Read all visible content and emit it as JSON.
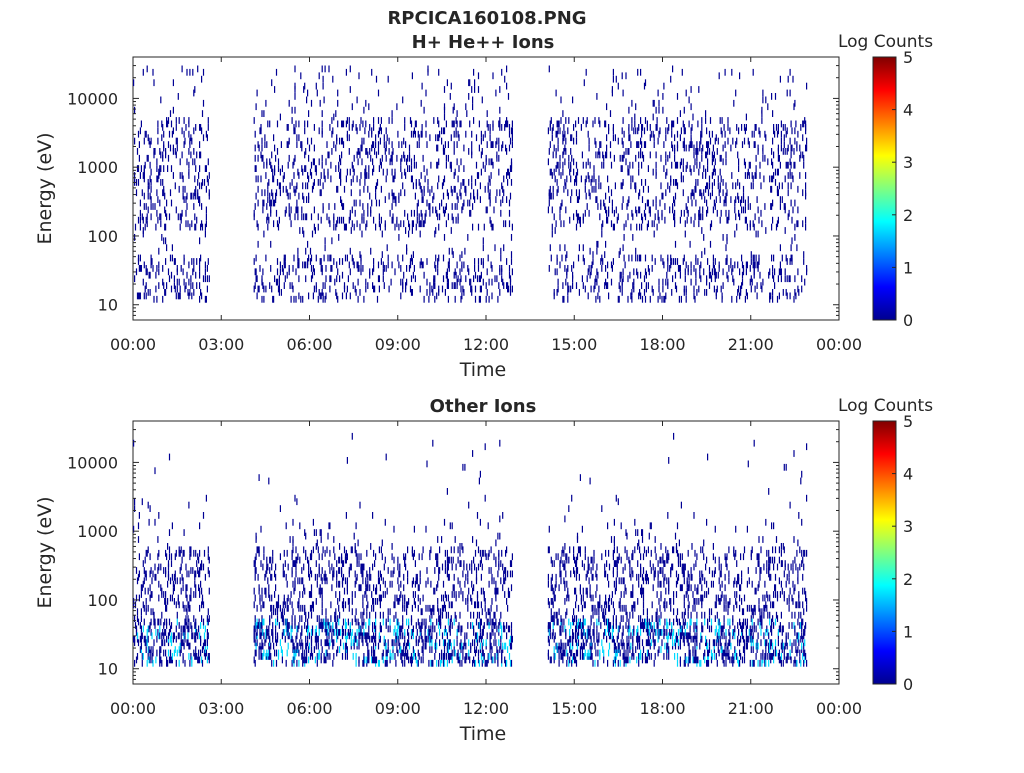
{
  "figure_title": "RPCICA160108.PNG",
  "chart_data": [
    {
      "type": "heatmap",
      "title": "H+ He++ Ions",
      "xlabel": "Time",
      "ylabel": "Energy (eV)",
      "xlim": [
        0,
        24
      ],
      "x_unit": "hours",
      "ylim": [
        6,
        40000
      ],
      "yscale": "log",
      "x_ticks": [
        "00:00",
        "03:00",
        "06:00",
        "09:00",
        "12:00",
        "15:00",
        "18:00",
        "21:00",
        "00:00"
      ],
      "y_ticks": [
        "10",
        "100",
        "1000",
        "10000"
      ],
      "y_tick_values": [
        10,
        100,
        1000,
        10000
      ],
      "data_coverage_hours": [
        [
          0.0,
          2.6
        ],
        [
          4.1,
          12.9
        ],
        [
          14.1,
          22.9
        ]
      ],
      "colorbar": {
        "label": "Log Counts",
        "min": 0,
        "max": 5,
        "ticks": [
          "0",
          "1",
          "2",
          "3",
          "4",
          "5"
        ]
      },
      "dominant_log_counts": 0.1,
      "grid": false
    },
    {
      "type": "heatmap",
      "title": "Other Ions",
      "xlabel": "Time",
      "ylabel": "Energy (eV)",
      "xlim": [
        0,
        24
      ],
      "x_unit": "hours",
      "ylim": [
        6,
        40000
      ],
      "yscale": "log",
      "x_ticks": [
        "00:00",
        "03:00",
        "06:00",
        "09:00",
        "12:00",
        "15:00",
        "18:00",
        "21:00",
        "00:00"
      ],
      "y_ticks": [
        "10",
        "100",
        "1000",
        "10000"
      ],
      "y_tick_values": [
        10,
        100,
        1000,
        10000
      ],
      "data_coverage_hours": [
        [
          0.0,
          2.6
        ],
        [
          4.1,
          12.9
        ],
        [
          14.1,
          22.9
        ]
      ],
      "colorbar": {
        "label": "Log Counts",
        "min": 0,
        "max": 5,
        "ticks": [
          "0",
          "1",
          "2",
          "3",
          "4",
          "5"
        ]
      },
      "dominant_log_counts": 0.1,
      "secondary_log_counts": 1.7,
      "grid": false
    }
  ]
}
